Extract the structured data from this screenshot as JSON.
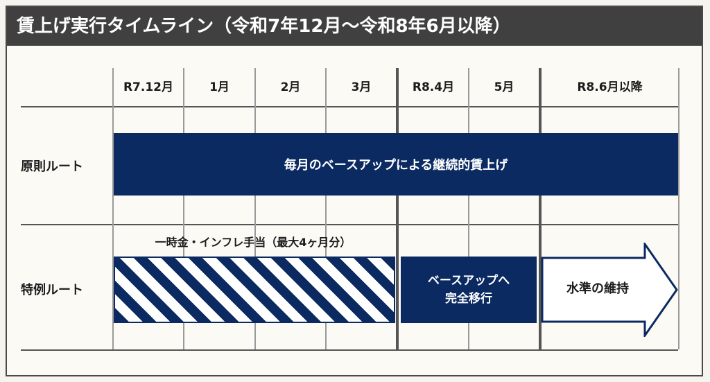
{
  "title": "賃上げ実行タイムライン（令和7年12月〜令和8年6月以降）",
  "months": [
    "R7.12月",
    "1月",
    "2月",
    "3月",
    "R8.4月",
    "5月",
    "R8.6月以降"
  ],
  "rows": {
    "principle": {
      "label": "原則ルート",
      "bar_text": "毎月のベースアップによる継続的賃上げ"
    },
    "exception": {
      "label": "特例ルート",
      "note": "一時金・インフレ手当（最大4ヶ月分）",
      "shift_line1": "ベースアップへ",
      "shift_line2": "完全移行",
      "maintain": "水準の維持"
    }
  },
  "colors": {
    "navy": "#0b2a62",
    "title_bg": "#404040",
    "background": "#fbfaf5"
  }
}
